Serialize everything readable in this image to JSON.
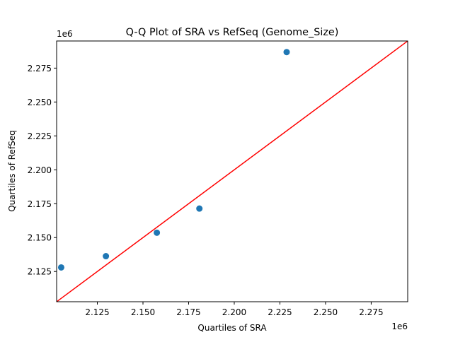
{
  "chart_data": {
    "type": "scatter",
    "title": "Q-Q Plot of SRA vs RefSeq (Genome_Size)",
    "xlabel": "Quartiles of SRA",
    "ylabel": "Quartiles of RefSeq",
    "x_offset_label": "1e6",
    "y_offset_label": "1e6",
    "xlim": [
      2.1027,
      2.295
    ],
    "ylim": [
      2.1027,
      2.295
    ],
    "xticks": [
      2.125,
      2.15,
      2.175,
      2.2,
      2.225,
      2.25,
      2.275
    ],
    "xtick_labels": [
      "2.125",
      "2.150",
      "2.175",
      "2.200",
      "2.225",
      "2.250",
      "2.275"
    ],
    "yticks": [
      2.125,
      2.15,
      2.175,
      2.2,
      2.225,
      2.25,
      2.275
    ],
    "ytick_labels": [
      "2.125",
      "2.150",
      "2.175",
      "2.200",
      "2.225",
      "2.250",
      "2.275"
    ],
    "grid": false,
    "points": {
      "x": [
        2.1052,
        2.1297,
        2.1576,
        2.1809,
        2.2287
      ],
      "y": [
        2.128,
        2.1363,
        2.1536,
        2.1714,
        2.2868
      ],
      "color": "#1f77b4"
    },
    "reference_line": {
      "x": [
        2.1027,
        2.295
      ],
      "y": [
        2.1027,
        2.295
      ],
      "color": "#ff0000"
    }
  }
}
